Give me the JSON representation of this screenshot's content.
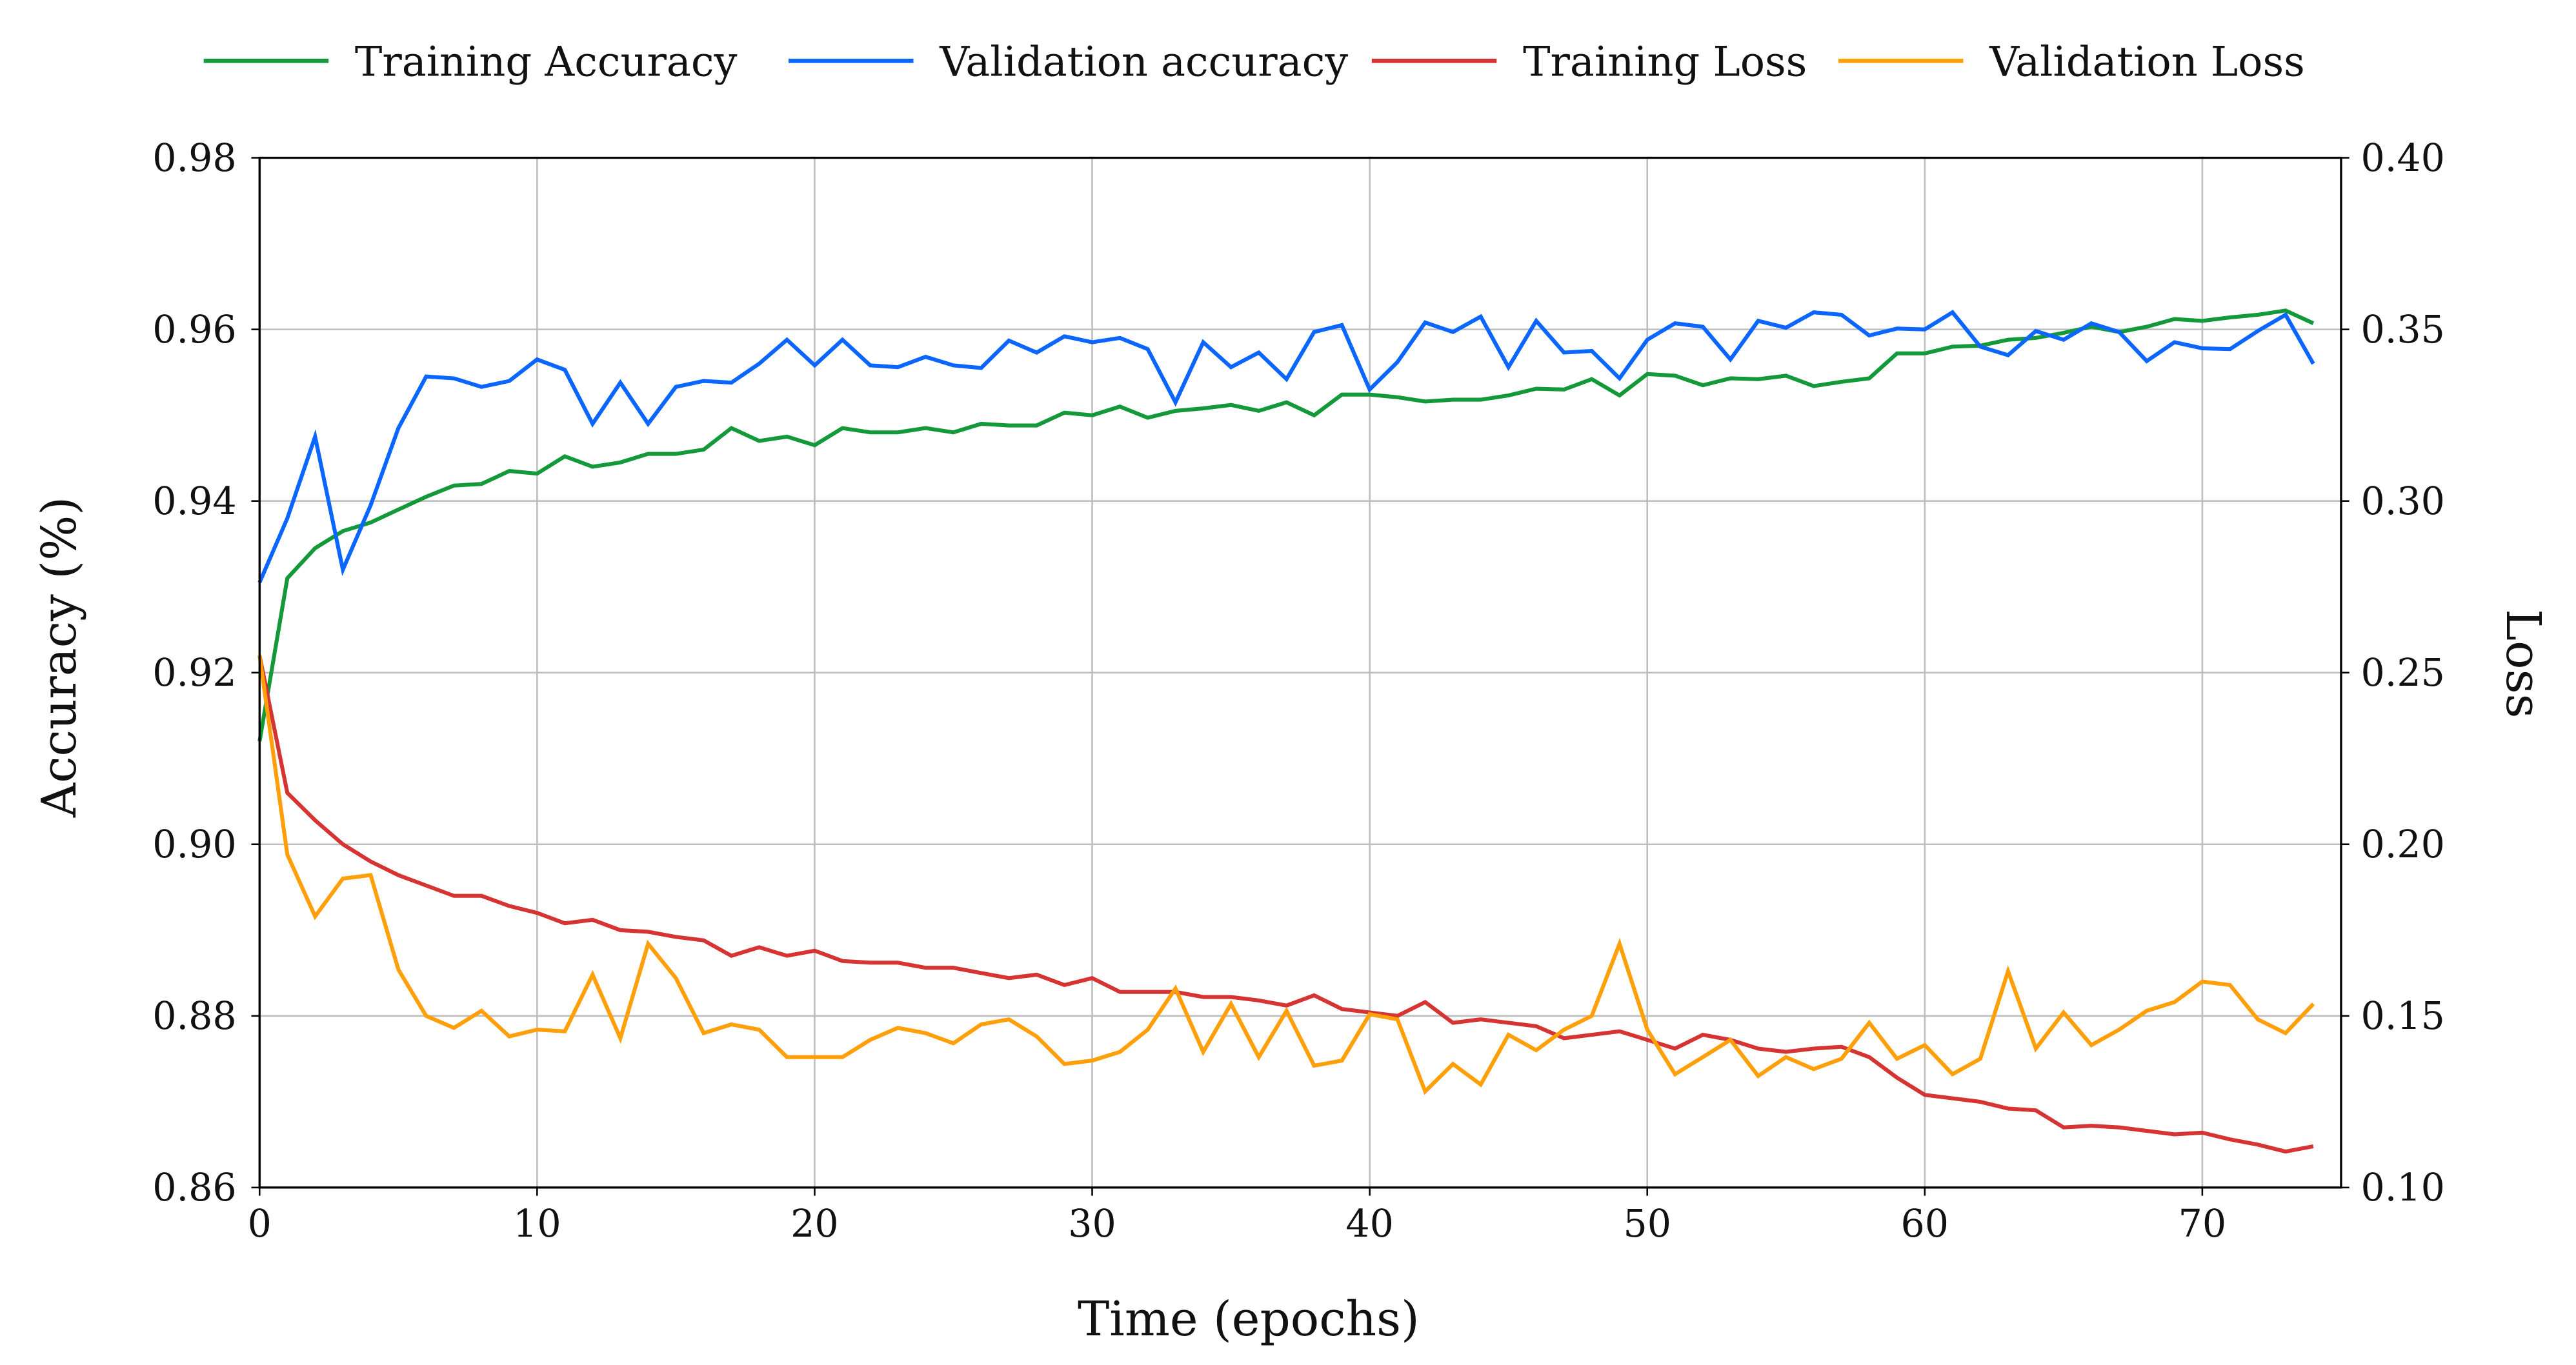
{
  "chart_data": {
    "type": "line",
    "title": "",
    "xlabel": "Time (epochs)",
    "ylabel": "Accuracy (%)",
    "ylabel_right": "Loss",
    "xlim": [
      0,
      75
    ],
    "ylim": [
      0.86,
      0.98
    ],
    "ylim_right": [
      0.1,
      0.4
    ],
    "grid": true,
    "legend_position": "top",
    "xticks": [
      "0",
      "10",
      "20",
      "30",
      "40",
      "50",
      "60",
      "70"
    ],
    "xtick_values": [
      0,
      10,
      20,
      30,
      40,
      50,
      60,
      70
    ],
    "yticks": [
      "0.86",
      "0.88",
      "0.90",
      "0.92",
      "0.94",
      "0.96",
      "0.98"
    ],
    "ytick_values": [
      0.86,
      0.88,
      0.9,
      0.92,
      0.94,
      0.96,
      0.98
    ],
    "yticks_right": [
      "0.10",
      "0.15",
      "0.20",
      "0.25",
      "0.30",
      "0.35",
      "0.40"
    ],
    "ytick_right_values": [
      0.1,
      0.15,
      0.2,
      0.25,
      0.3,
      0.35,
      0.4
    ],
    "series": [
      {
        "name": "Training Accuracy",
        "axis": "left",
        "color": "#14993a",
        "values": [
          0.912,
          0.931,
          0.9345,
          0.9365,
          0.9375,
          0.939,
          0.9405,
          0.9418,
          0.942,
          0.9435,
          0.9432,
          0.9452,
          0.944,
          0.9445,
          0.9455,
          0.9455,
          0.946,
          0.9485,
          0.947,
          0.9475,
          0.9465,
          0.9485,
          0.948,
          0.948,
          0.9485,
          0.948,
          0.949,
          0.9488,
          0.9488,
          0.9503,
          0.95,
          0.951,
          0.9497,
          0.9505,
          0.9508,
          0.9512,
          0.9505,
          0.9515,
          0.95,
          0.9524,
          0.9524,
          0.9521,
          0.9516,
          0.9518,
          0.9518,
          0.9523,
          0.9531,
          0.953,
          0.9542,
          0.9523,
          0.9548,
          0.9546,
          0.9535,
          0.9543,
          0.9542,
          0.9546,
          0.9534,
          0.9539,
          0.9543,
          0.9572,
          0.9572,
          0.958,
          0.9581,
          0.9588,
          0.959,
          0.9596,
          0.9603,
          0.9597,
          0.9603,
          0.9612,
          0.961,
          0.9614,
          0.9617,
          0.9622,
          0.9607
        ]
      },
      {
        "name": "Validation accuracy",
        "axis": "left",
        "color": "#0a66ff",
        "values": [
          0.9305,
          0.938,
          0.9475,
          0.932,
          0.9395,
          0.9485,
          0.9545,
          0.9543,
          0.9533,
          0.954,
          0.9565,
          0.9553,
          0.949,
          0.9538,
          0.949,
          0.9533,
          0.954,
          0.9538,
          0.956,
          0.9588,
          0.9558,
          0.9588,
          0.9558,
          0.9556,
          0.9568,
          0.9558,
          0.9555,
          0.9587,
          0.9573,
          0.9592,
          0.9585,
          0.959,
          0.9577,
          0.9515,
          0.9585,
          0.9556,
          0.9573,
          0.9542,
          0.9597,
          0.9605,
          0.953,
          0.9562,
          0.9608,
          0.9597,
          0.9615,
          0.9556,
          0.961,
          0.9573,
          0.9575,
          0.9543,
          0.9588,
          0.9607,
          0.9603,
          0.9565,
          0.961,
          0.9602,
          0.962,
          0.9617,
          0.9593,
          0.9601,
          0.96,
          0.962,
          0.958,
          0.957,
          0.9598,
          0.9588,
          0.9607,
          0.9597,
          0.9563,
          0.9585,
          0.9578,
          0.9577,
          0.9598,
          0.9617,
          0.956
        ]
      },
      {
        "name": "Training Loss",
        "axis": "right",
        "color": "#d63333",
        "values": [
          0.255,
          0.215,
          0.207,
          0.2,
          0.195,
          0.191,
          0.188,
          0.185,
          0.185,
          0.182,
          0.18,
          0.177,
          0.178,
          0.175,
          0.1745,
          0.173,
          0.172,
          0.1675,
          0.17,
          0.1675,
          0.169,
          0.166,
          0.1655,
          0.1655,
          0.164,
          0.164,
          0.1625,
          0.161,
          0.162,
          0.159,
          0.161,
          0.157,
          0.157,
          0.157,
          0.1555,
          0.1555,
          0.1545,
          0.153,
          0.156,
          0.152,
          0.151,
          0.15,
          0.154,
          0.148,
          0.149,
          0.148,
          0.147,
          0.1435,
          0.1445,
          0.1455,
          0.143,
          0.1405,
          0.1445,
          0.143,
          0.1405,
          0.1395,
          0.1405,
          0.141,
          0.138,
          0.132,
          0.127,
          0.126,
          0.125,
          0.123,
          0.1225,
          0.1175,
          0.118,
          0.1175,
          0.1165,
          0.1155,
          0.116,
          0.114,
          0.1125,
          0.1105,
          0.112
        ]
      },
      {
        "name": "Validation Loss",
        "axis": "right",
        "color": "#ff9f0a",
        "values": [
          0.255,
          0.197,
          0.179,
          0.19,
          0.191,
          0.1635,
          0.15,
          0.1465,
          0.1515,
          0.144,
          0.146,
          0.1455,
          0.162,
          0.1435,
          0.171,
          0.161,
          0.145,
          0.1475,
          0.146,
          0.138,
          0.138,
          0.138,
          0.143,
          0.1465,
          0.145,
          0.142,
          0.1475,
          0.149,
          0.144,
          0.136,
          0.137,
          0.1395,
          0.146,
          0.158,
          0.1395,
          0.1535,
          0.138,
          0.1515,
          0.1355,
          0.137,
          0.1505,
          0.149,
          0.128,
          0.136,
          0.13,
          0.1445,
          0.14,
          0.146,
          0.15,
          0.171,
          0.146,
          0.133,
          0.138,
          0.143,
          0.1325,
          0.138,
          0.1345,
          0.1375,
          0.148,
          0.1375,
          0.1415,
          0.133,
          0.1375,
          0.163,
          0.1405,
          0.151,
          0.1415,
          0.146,
          0.1515,
          0.154,
          0.16,
          0.159,
          0.149,
          0.145,
          0.1535
        ]
      }
    ]
  }
}
